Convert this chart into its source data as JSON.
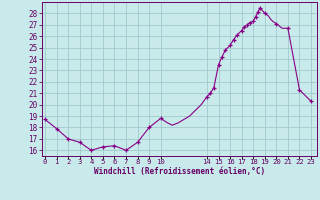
{
  "xlabel": "Windchill (Refroidissement éolien,°C)",
  "hours": [
    0,
    1,
    2,
    3,
    4,
    5,
    6,
    7,
    8,
    9,
    10,
    10.3,
    10.6,
    11,
    11.5,
    12,
    12.5,
    13,
    13.5,
    14,
    14.3,
    14.6,
    15,
    15.3,
    15.6,
    16,
    16.3,
    16.6,
    17,
    17.2,
    17.5,
    17.7,
    18,
    18.2,
    18.4,
    18.6,
    19,
    19.3,
    19.5,
    19.7,
    20,
    20.5,
    21,
    21.5,
    22,
    22.5,
    23
  ],
  "temps": [
    18.7,
    17.9,
    17.0,
    16.7,
    16.0,
    16.3,
    16.4,
    16.0,
    16.7,
    18.0,
    18.8,
    18.6,
    18.4,
    18.2,
    18.4,
    18.7,
    19.0,
    19.5,
    20.0,
    20.7,
    21.0,
    21.5,
    23.5,
    24.2,
    24.8,
    25.2,
    25.7,
    26.1,
    26.5,
    26.8,
    27.0,
    27.2,
    27.3,
    27.7,
    28.1,
    28.5,
    28.0,
    27.8,
    27.5,
    27.3,
    27.1,
    26.7,
    26.7,
    24.0,
    21.3,
    20.8,
    20.3
  ],
  "marker_hours": [
    0,
    1,
    2,
    3,
    4,
    5,
    6,
    7,
    8,
    9,
    10,
    14,
    14.3,
    14.6,
    15,
    15.3,
    15.6,
    16,
    16.3,
    16.6,
    17,
    17.2,
    17.5,
    17.7,
    18,
    18.2,
    18.4,
    18.6,
    19,
    20,
    21,
    22,
    23
  ],
  "marker_temps": [
    18.7,
    17.9,
    17.0,
    16.7,
    16.0,
    16.3,
    16.4,
    16.0,
    16.7,
    18.0,
    18.8,
    20.7,
    21.0,
    21.5,
    23.5,
    24.2,
    24.8,
    25.2,
    25.7,
    26.1,
    26.5,
    26.8,
    27.0,
    27.2,
    27.3,
    27.7,
    28.1,
    28.5,
    28.0,
    27.1,
    26.7,
    21.3,
    20.3
  ],
  "ylim_min": 15.5,
  "ylim_max": 29.0,
  "yticks": [
    16,
    17,
    18,
    19,
    20,
    21,
    22,
    23,
    24,
    25,
    26,
    27,
    28
  ],
  "xtick_positions": [
    0,
    1,
    2,
    3,
    4,
    5,
    6,
    7,
    8,
    9,
    10,
    14,
    15,
    16,
    17,
    18,
    19,
    20,
    21,
    22,
    23
  ],
  "xtick_labels": [
    "0",
    "1",
    "2",
    "3",
    "4",
    "5",
    "6",
    "7",
    "8",
    "9",
    "10",
    "14",
    "15",
    "16",
    "17",
    "18",
    "19",
    "20",
    "21",
    "22",
    "23"
  ],
  "xlim_min": -0.3,
  "xlim_max": 23.5,
  "line_color": "#880088",
  "marker_color": "#880088",
  "bg_color": "#c8eaea",
  "grid_color": "#a0cccc",
  "axis_color": "#660066",
  "text_color": "#660066",
  "tick_color": "#660066",
  "line_width": 0.8,
  "marker_size": 3.5
}
